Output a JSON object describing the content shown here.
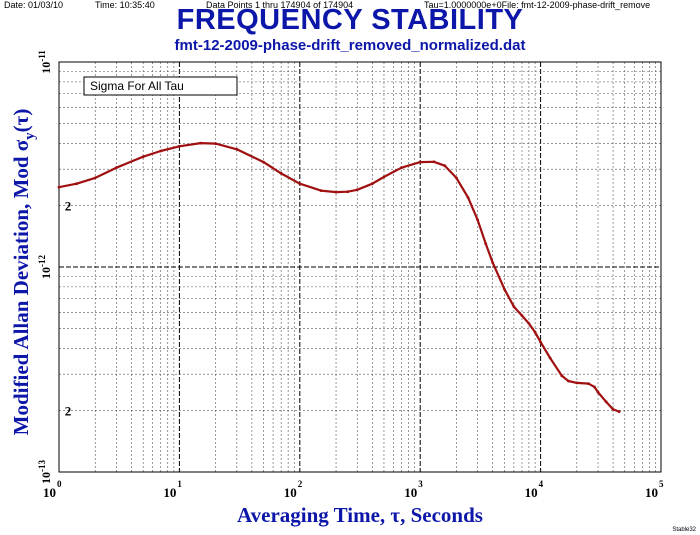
{
  "header": {
    "date": "Date: 01/03/10",
    "time": "Time: 10:35:40",
    "points": "Data Points 1 thru 174904 of 174904",
    "tau_file": "Tau=1.0000000e+0File: fmt-12-2009-phase-drift_remove"
  },
  "footer": "Stable32",
  "chart_data": {
    "type": "line",
    "title": "FREQUENCY STABILITY",
    "subtitle": "fmt-12-2009-phase-drift_removed_normalized.dat",
    "xlabel": "Averaging Time, τ, Seconds",
    "ylabel": "Modified Allan Deviation, Mod σ",
    "ylabel_sub": "y",
    "ylabel_tail": "(τ)",
    "xscale": "log",
    "yscale": "log",
    "xlim": [
      1,
      100000
    ],
    "ylim": [
      1e-13,
      1e-11
    ],
    "grid": true,
    "x_ticks": [
      {
        "base": "10",
        "exp": "0",
        "value": 1
      },
      {
        "base": "10",
        "exp": "1",
        "value": 10
      },
      {
        "base": "10",
        "exp": "2",
        "value": 100
      },
      {
        "base": "10",
        "exp": "3",
        "value": 1000
      },
      {
        "base": "10",
        "exp": "4",
        "value": 10000
      },
      {
        "base": "10",
        "exp": "5",
        "value": 100000
      }
    ],
    "y_ticks": [
      {
        "base": "10",
        "exp": "-11",
        "value": 1e-11
      },
      {
        "base": "10",
        "exp": "-12",
        "value": 1e-12
      },
      {
        "base": "10",
        "exp": "-13",
        "value": 1e-13
      }
    ],
    "y_minor_labels": [
      {
        "label": "2",
        "value": 2e-12
      },
      {
        "label": "2",
        "value": 2e-13
      }
    ],
    "legend": "Sigma For All Tau",
    "legend_position": "top-left",
    "series_color": "#a01010",
    "series": [
      {
        "x": [
          1,
          1.4,
          2,
          3,
          5,
          7,
          10,
          15,
          20,
          30,
          50,
          70,
          100,
          150,
          200,
          250,
          300,
          400,
          500,
          700,
          1000,
          1300,
          1600,
          2000,
          2500,
          3000,
          3500,
          4000,
          5000,
          6000,
          7000,
          8000,
          9000,
          10000,
          12000,
          15000,
          17000,
          20000,
          25000,
          28000,
          30000,
          35000,
          40000,
          45000
        ],
        "y": [
          2.45e-12,
          2.55e-12,
          2.72e-12,
          3.05e-12,
          3.45e-12,
          3.68e-12,
          3.88e-12,
          4.02e-12,
          4e-12,
          3.75e-12,
          3.25e-12,
          2.86e-12,
          2.55e-12,
          2.36e-12,
          2.32e-12,
          2.33e-12,
          2.38e-12,
          2.55e-12,
          2.75e-12,
          3.05e-12,
          3.25e-12,
          3.26e-12,
          3.12e-12,
          2.72e-12,
          2.18e-12,
          1.7e-12,
          1.3e-12,
          1.05e-12,
          7.8e-13,
          6.4e-13,
          5.8e-13,
          5.3e-13,
          4.8e-13,
          4.3e-13,
          3.6e-13,
          2.95e-13,
          2.78e-13,
          2.72e-13,
          2.7e-13,
          2.6e-13,
          2.45e-13,
          2.2e-13,
          2.02e-13,
          1.97e-13
        ]
      }
    ]
  }
}
